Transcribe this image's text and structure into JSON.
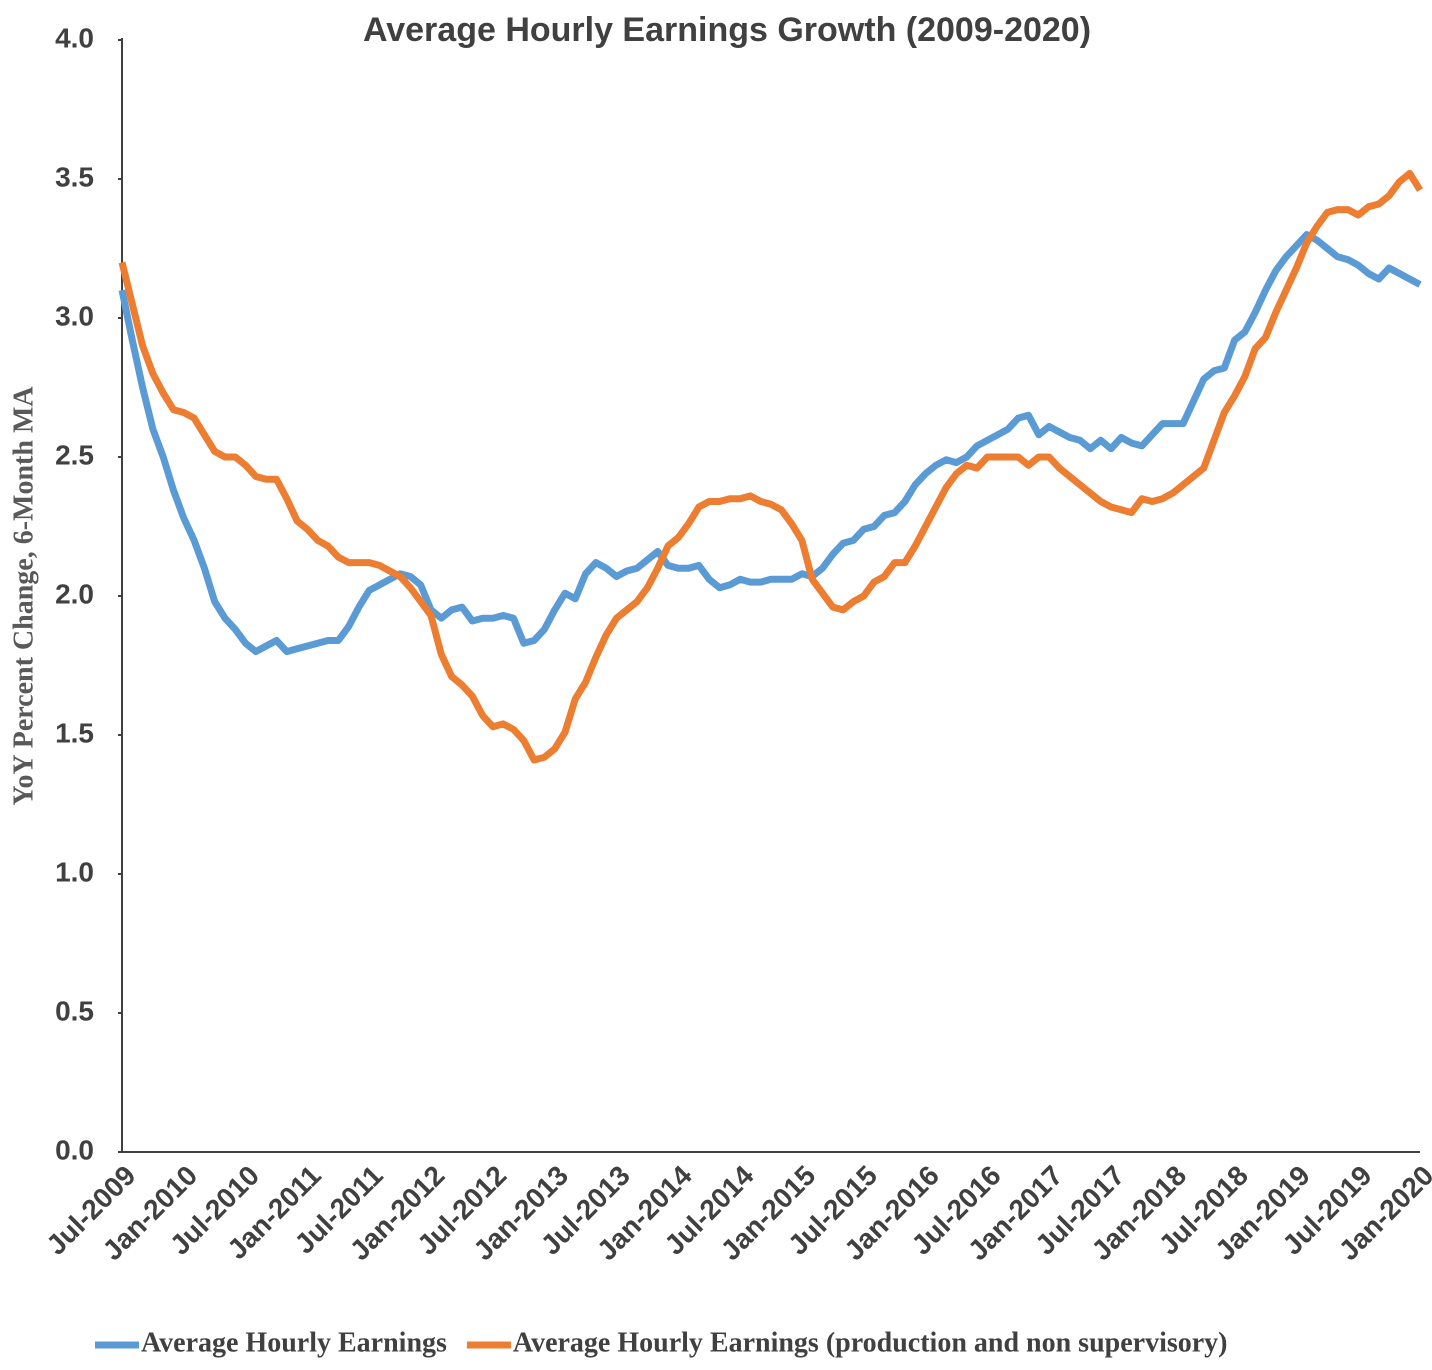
{
  "chart_data": {
    "type": "line",
    "title": "Average Hourly Earnings Growth (2009-2020)",
    "y_label": "YoY Percent Change, 6-Month MA",
    "categories": [
      "Jul-2009",
      null,
      null,
      null,
      null,
      null,
      "Jan-2010",
      null,
      null,
      null,
      null,
      null,
      "Jul-2010",
      null,
      null,
      null,
      null,
      null,
      "Jan-2011",
      null,
      null,
      null,
      null,
      null,
      "Jul-2011",
      null,
      null,
      null,
      null,
      null,
      "Jan-2012",
      null,
      null,
      null,
      null,
      null,
      "Jul-2012",
      null,
      null,
      null,
      null,
      null,
      "Jan-2013",
      null,
      null,
      null,
      null,
      null,
      "Jul-2013",
      null,
      null,
      null,
      null,
      null,
      "Jan-2014",
      null,
      null,
      null,
      null,
      null,
      "Jul-2014",
      null,
      null,
      null,
      null,
      null,
      "Jan-2015",
      null,
      null,
      null,
      null,
      null,
      "Jul-2015",
      null,
      null,
      null,
      null,
      null,
      "Jan-2016",
      null,
      null,
      null,
      null,
      null,
      "Jul-2016",
      null,
      null,
      null,
      null,
      null,
      "Jan-2017",
      null,
      null,
      null,
      null,
      null,
      "Jul-2017",
      null,
      null,
      null,
      null,
      null,
      "Jan-2018",
      null,
      null,
      null,
      null,
      null,
      "Jul-2018",
      null,
      null,
      null,
      null,
      null,
      "Jan-2019",
      null,
      null,
      null,
      null,
      null,
      "Jul-2019",
      null,
      null,
      null,
      null,
      null,
      "Jan-2020"
    ],
    "series": [
      {
        "name": "Average Hourly Earnings",
        "color": "#5b9bd5",
        "values": [
          3.1,
          2.92,
          2.75,
          2.6,
          2.5,
          2.38,
          2.28,
          2.2,
          2.1,
          1.98,
          1.92,
          1.88,
          1.83,
          1.8,
          1.82,
          1.84,
          1.8,
          1.81,
          1.82,
          1.83,
          1.84,
          1.84,
          1.89,
          1.96,
          2.02,
          2.04,
          2.06,
          2.08,
          2.07,
          2.04,
          1.95,
          1.92,
          1.95,
          1.96,
          1.91,
          1.92,
          1.92,
          1.93,
          1.92,
          1.83,
          1.84,
          1.88,
          1.95,
          2.01,
          1.99,
          2.08,
          2.12,
          2.1,
          2.07,
          2.09,
          2.1,
          2.13,
          2.16,
          2.11,
          2.1,
          2.1,
          2.11,
          2.06,
          2.03,
          2.04,
          2.06,
          2.05,
          2.05,
          2.06,
          2.06,
          2.06,
          2.08,
          2.07,
          2.1,
          2.15,
          2.19,
          2.2,
          2.24,
          2.25,
          2.29,
          2.3,
          2.34,
          2.4,
          2.44,
          2.47,
          2.49,
          2.48,
          2.5,
          2.54,
          2.56,
          2.58,
          2.6,
          2.64,
          2.65,
          2.58,
          2.61,
          2.59,
          2.57,
          2.56,
          2.53,
          2.56,
          2.53,
          2.57,
          2.55,
          2.54,
          2.58,
          2.62,
          2.62,
          2.62,
          2.7,
          2.78,
          2.81,
          2.82,
          2.92,
          2.95,
          3.02,
          3.1,
          3.17,
          3.22,
          3.26,
          3.3,
          3.28,
          3.25,
          3.22,
          3.21,
          3.19,
          3.16,
          3.14,
          3.18,
          3.16,
          3.14,
          3.12
        ]
      },
      {
        "name": "Average Hourly Earnings (production and non supervisory)",
        "color": "#ed7d31",
        "values": [
          3.2,
          3.05,
          2.9,
          2.8,
          2.73,
          2.67,
          2.66,
          2.64,
          2.58,
          2.52,
          2.5,
          2.5,
          2.47,
          2.43,
          2.42,
          2.42,
          2.35,
          2.27,
          2.24,
          2.2,
          2.18,
          2.14,
          2.12,
          2.12,
          2.12,
          2.11,
          2.09,
          2.07,
          2.03,
          1.98,
          1.93,
          1.79,
          1.71,
          1.68,
          1.64,
          1.57,
          1.53,
          1.54,
          1.52,
          1.48,
          1.41,
          1.42,
          1.45,
          1.51,
          1.63,
          1.69,
          1.78,
          1.86,
          1.92,
          1.95,
          1.98,
          2.03,
          2.1,
          2.18,
          2.21,
          2.26,
          2.32,
          2.34,
          2.34,
          2.35,
          2.35,
          2.36,
          2.34,
          2.33,
          2.31,
          2.26,
          2.2,
          2.06,
          2.01,
          1.96,
          1.95,
          1.98,
          2.0,
          2.05,
          2.07,
          2.12,
          2.12,
          2.18,
          2.25,
          2.32,
          2.39,
          2.44,
          2.47,
          2.46,
          2.5,
          2.5,
          2.5,
          2.5,
          2.47,
          2.5,
          2.5,
          2.46,
          2.43,
          2.4,
          2.37,
          2.34,
          2.32,
          2.31,
          2.3,
          2.35,
          2.34,
          2.35,
          2.37,
          2.4,
          2.43,
          2.46,
          2.56,
          2.66,
          2.72,
          2.79,
          2.89,
          2.93,
          3.02,
          3.1,
          3.18,
          3.27,
          3.33,
          3.38,
          3.39,
          3.39,
          3.37,
          3.4,
          3.41,
          3.44,
          3.49,
          3.52,
          3.46
        ]
      }
    ],
    "ylim": [
      0,
      4
    ],
    "yticks": [
      {
        "value": 0,
        "label": "0.0"
      },
      0.5,
      {
        "value": 1,
        "label": "1.0"
      },
      1.5,
      {
        "value": 2,
        "label": "2.0"
      },
      2.5,
      {
        "value": 3,
        "label": "3.0"
      },
      3.5,
      {
        "value": 4,
        "label": "4.0"
      }
    ],
    "grid": false,
    "legend": "bottom"
  }
}
